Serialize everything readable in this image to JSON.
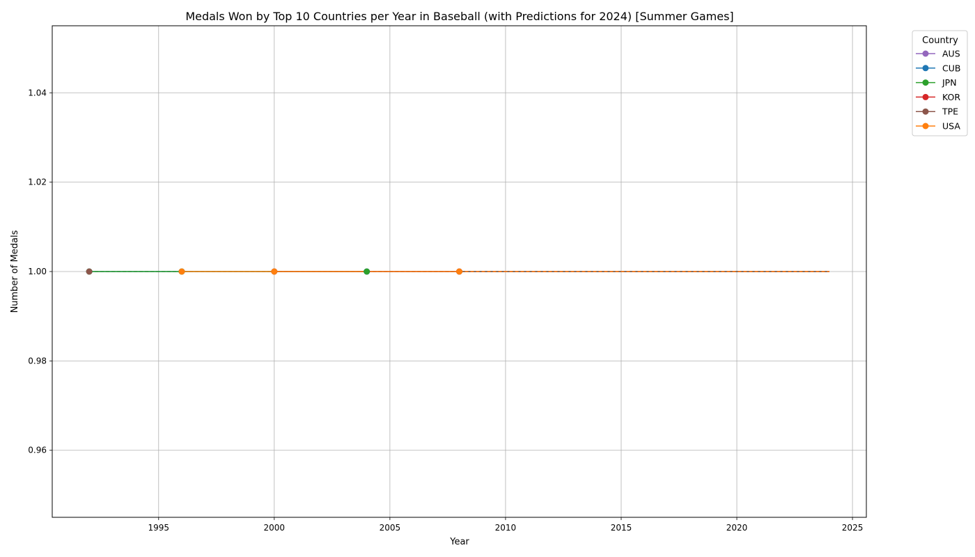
{
  "chart_data": {
    "type": "line",
    "title": "Medals Won by Top 10 Countries per Year in Baseball (with Predictions for 2024) [Summer Games]",
    "xlabel": "Year",
    "ylabel": "Number of Medals",
    "xlim": [
      1990.4,
      2025.6
    ],
    "ylim": [
      0.945,
      1.055
    ],
    "xticks": [
      1995,
      2000,
      2005,
      2010,
      2015,
      2020,
      2025
    ],
    "yticks": [
      0.96,
      0.98,
      1.0,
      1.02,
      1.04
    ],
    "ytick_labels": [
      "0.96",
      "0.98",
      "1.00",
      "1.02",
      "1.04"
    ],
    "grid": true,
    "legend": {
      "title": "Country",
      "placement": "outside-top-right"
    },
    "series": [
      {
        "name": "AUS",
        "color": "#9467bd",
        "points": [
          [
            2004,
            1
          ]
        ],
        "prediction": [
          [
            2004,
            1
          ],
          [
            2024,
            1
          ]
        ]
      },
      {
        "name": "CUB",
        "color": "#1f77b4",
        "points": [
          [
            1992,
            1
          ],
          [
            1996,
            1
          ],
          [
            2000,
            1
          ],
          [
            2004,
            1
          ],
          [
            2008,
            1
          ]
        ],
        "prediction": [
          [
            2008,
            1
          ],
          [
            2024,
            1
          ]
        ]
      },
      {
        "name": "JPN",
        "color": "#2ca02c",
        "points": [
          [
            1992,
            1
          ],
          [
            1996,
            1
          ],
          [
            2004,
            1
          ]
        ],
        "prediction": [
          [
            2004,
            1
          ],
          [
            2024,
            1
          ]
        ]
      },
      {
        "name": "KOR",
        "color": "#d62728",
        "points": [
          [
            2000,
            1
          ],
          [
            2008,
            1
          ]
        ],
        "prediction": [
          [
            2008,
            1
          ],
          [
            2024,
            1
          ]
        ]
      },
      {
        "name": "TPE",
        "color": "#8c564b",
        "points": [
          [
            1992,
            1
          ]
        ],
        "prediction": [
          [
            1992,
            1
          ],
          [
            2024,
            1
          ]
        ]
      },
      {
        "name": "USA",
        "color": "#ff7f0e",
        "points": [
          [
            1996,
            1
          ],
          [
            2000,
            1
          ],
          [
            2008,
            1
          ]
        ],
        "prediction": [
          [
            2008,
            1
          ],
          [
            2024,
            1
          ]
        ]
      }
    ]
  }
}
